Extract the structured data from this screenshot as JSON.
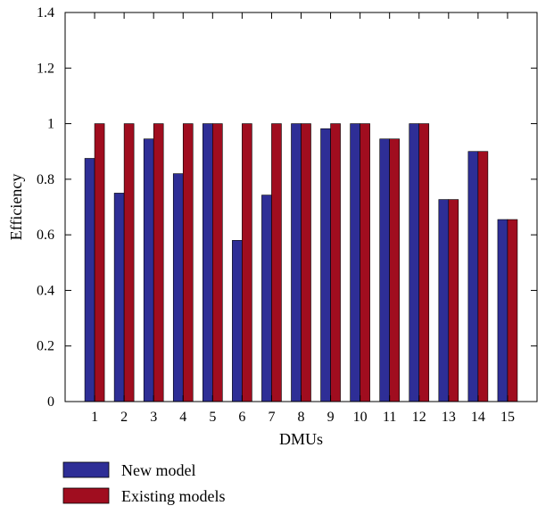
{
  "chart_data": {
    "type": "bar",
    "title": "",
    "xlabel": "DMUs",
    "ylabel": "Efficiency",
    "ylim": [
      0,
      1.4
    ],
    "yticks": [
      "0",
      "0.2",
      "0.4",
      "0.6",
      "0.8",
      "1",
      "1.2",
      "1.4"
    ],
    "categories": [
      "1",
      "2",
      "3",
      "4",
      "5",
      "6",
      "7",
      "8",
      "9",
      "10",
      "11",
      "12",
      "13",
      "14",
      "15"
    ],
    "series": [
      {
        "name": "New model",
        "color": "#2e2e96",
        "values": [
          0.875,
          0.75,
          0.945,
          0.82,
          1.0,
          0.58,
          0.743,
          1.0,
          0.982,
          1.0,
          0.945,
          1.0,
          0.727,
          0.9,
          0.655
        ]
      },
      {
        "name": "Existing models",
        "color": "#a00d1f",
        "values": [
          1.0,
          1.0,
          1.0,
          1.0,
          1.0,
          1.0,
          1.0,
          1.0,
          1.0,
          1.0,
          0.945,
          1.0,
          0.727,
          0.9,
          0.655
        ]
      }
    ],
    "grid": false,
    "legend": "bottom-left"
  }
}
